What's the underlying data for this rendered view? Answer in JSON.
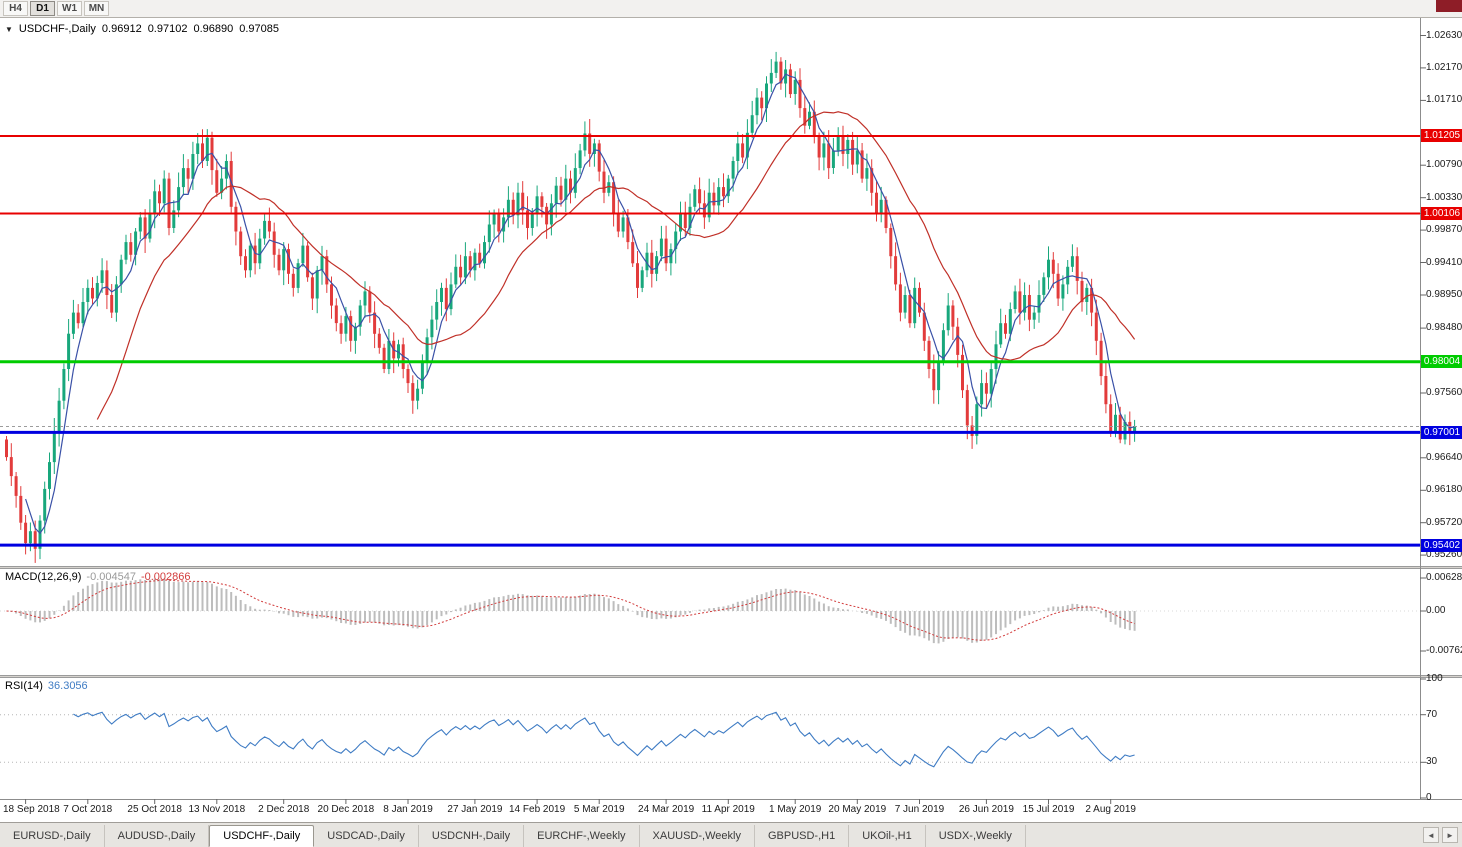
{
  "toolbar": {
    "timeframes": [
      {
        "label": "H4",
        "active": false
      },
      {
        "label": "D1",
        "active": true
      },
      {
        "label": "W1",
        "active": false
      },
      {
        "label": "MN",
        "active": false
      }
    ]
  },
  "chart": {
    "title": {
      "menu_icon": "▼",
      "symbol": "USDCHF-,Daily",
      "open": "0.96912",
      "high": "0.97102",
      "low": "0.96890",
      "close": "0.97085"
    }
  },
  "price_scale": {
    "ticks": [
      "1.02630",
      "1.02170",
      "1.01710",
      "1.00790",
      "1.00330",
      "0.99870",
      "0.99410",
      "0.98950",
      "0.98480",
      "0.97560",
      "0.96640",
      "0.96180",
      "0.95720",
      "0.95260"
    ]
  },
  "macd_panel": {
    "name": "MACD(12,26,9)",
    "value_main": "-0.004547",
    "value_signal": "-0.002866",
    "scale": [
      "0.006286",
      "0.00",
      "-0.00762"
    ]
  },
  "rsi_panel": {
    "name": "RSI(14)",
    "value": "36.3056",
    "scale": [
      "100",
      "70",
      "30",
      "0"
    ]
  },
  "tab_nav": {
    "prev": "◄",
    "next": "►"
  },
  "tabs": [
    {
      "label": "EURUSD-,Daily",
      "active": false
    },
    {
      "label": "AUDUSD-,Daily",
      "active": false
    },
    {
      "label": "USDCHF-,Daily",
      "active": true
    },
    {
      "label": "USDCAD-,Daily",
      "active": false
    },
    {
      "label": "USDCNH-,Daily",
      "active": false
    },
    {
      "label": "EURCHF-,Weekly",
      "active": false
    },
    {
      "label": "XAUUSD-,Weekly",
      "active": false
    },
    {
      "label": "GBPUSD-,H1",
      "active": false
    },
    {
      "label": "UKOil-,H1",
      "active": false
    },
    {
      "label": "USDX-,Weekly",
      "active": false
    }
  ],
  "chart_data": {
    "type": "candlestick",
    "title": "USDCHF-,Daily",
    "ylim": [
      0.9512,
      1.0285
    ],
    "grid": false,
    "x_tick_labels": [
      "18 Sep 2018",
      "7 Oct 2018",
      "25 Oct 2018",
      "13 Nov 2018",
      "2 Dec 2018",
      "20 Dec 2018",
      "8 Jan 2019",
      "27 Jan 2019",
      "14 Feb 2019",
      "5 Mar 2019",
      "24 Mar 2019",
      "11 Apr 2019",
      "1 May 2019",
      "20 May 2019",
      "7 Jun 2019",
      "26 Jun 2019",
      "15 Jul 2019",
      "2 Aug 2019"
    ],
    "x_tick_bar_index": [
      4,
      17,
      31,
      44,
      58,
      71,
      84,
      98,
      111,
      124,
      138,
      151,
      165,
      178,
      191,
      205,
      218,
      231
    ],
    "first_open": 0.969,
    "close": [
      0.9665,
      0.9638,
      0.961,
      0.9572,
      0.9543,
      0.956,
      0.9535,
      0.9575,
      0.962,
      0.9658,
      0.97,
      0.9745,
      0.979,
      0.984,
      0.987,
      0.9855,
      0.9885,
      0.9905,
      0.989,
      0.9912,
      0.993,
      0.9895,
      0.987,
      0.991,
      0.9945,
      0.997,
      0.9952,
      0.9985,
      1.0005,
      0.9975,
      1.001,
      1.0042,
      1.0025,
      1.006,
      0.999,
      1.0015,
      1.0048,
      1.0075,
      1.006,
      1.0095,
      1.011,
      1.0085,
      1.0118,
      1.0072,
      1.004,
      1.006,
      1.0085,
      1.002,
      0.9985,
      0.995,
      0.993,
      0.9965,
      0.994,
      0.9975,
      1.0,
      0.9985,
      0.9952,
      0.993,
      0.996,
      0.9925,
      0.9905,
      0.994,
      0.9965,
      0.992,
      0.989,
      0.993,
      0.995,
      0.991,
      0.988,
      0.9855,
      0.984,
      0.9865,
      0.983,
      0.985,
      0.988,
      0.99,
      0.987,
      0.984,
      0.982,
      0.979,
      0.983,
      0.9805,
      0.9825,
      0.979,
      0.977,
      0.9745,
      0.9762,
      0.98,
      0.9835,
      0.986,
      0.9885,
      0.9905,
      0.9875,
      0.991,
      0.9935,
      0.992,
      0.995,
      0.993,
      0.9955,
      0.994,
      0.997,
      0.9995,
      1.001,
      0.9985,
      1.0005,
      1.003,
      1.0008,
      1.004,
      1.0015,
      0.999,
      1.001,
      1.0035,
      1.002,
      0.9995,
      1.0025,
      1.005,
      1.003,
      1.006,
      1.004,
      1.0075,
      1.01,
      1.0124,
      1.0095,
      1.011,
      1.007,
      1.004,
      1.0055,
      1.001,
      0.9985,
      1.0005,
      0.997,
      0.994,
      0.9905,
      0.993,
      0.9955,
      0.9925,
      0.995,
      0.9975,
      0.994,
      0.996,
      0.9985,
      1.001,
      0.999,
      1.002,
      1.0045,
      1.0025,
      1.0005,
      1.004,
      1.0022,
      1.0048,
      1.0035,
      1.006,
      1.0085,
      1.011,
      1.009,
      1.0125,
      1.015,
      1.0175,
      1.016,
      1.0195,
      1.021,
      1.0226,
      1.0195,
      1.0215,
      1.018,
      1.02,
      1.016,
      1.0135,
      1.0155,
      1.012,
      1.009,
      1.011,
      1.0075,
      1.01,
      1.012,
      1.0095,
      1.0115,
      1.008,
      1.01,
      1.006,
      1.0075,
      1.004,
      1.001,
      1.003,
      0.999,
      0.995,
      0.991,
      0.987,
      0.9895,
      0.9855,
      0.9905,
      0.987,
      0.983,
      0.979,
      0.976,
      0.98,
      0.9845,
      0.988,
      0.985,
      0.981,
      0.976,
      0.971,
      0.9695,
      0.974,
      0.977,
      0.9755,
      0.979,
      0.9825,
      0.9855,
      0.984,
      0.9875,
      0.99,
      0.987,
      0.9895,
      0.986,
      0.987,
      0.9895,
      0.992,
      0.9945,
      0.9925,
      0.989,
      0.991,
      0.9935,
      0.995,
      0.9915,
      0.9885,
      0.9905,
      0.987,
      0.983,
      0.978,
      0.974,
      0.97,
      0.9725,
      0.969,
      0.9715,
      0.9702,
      0.9709
    ],
    "wick_overrides": [
      {
        "bar": 4,
        "low": 0.9527
      },
      {
        "bar": 85,
        "low": 0.9739
      },
      {
        "bar": 161,
        "high": 1.0231
      },
      {
        "bar": 202,
        "low": 0.9693
      },
      {
        "bar": 233,
        "low": 0.9686
      }
    ],
    "current_price": 0.97085,
    "horizontal_lines": [
      {
        "price": 1.01205,
        "label": "1.01205",
        "color": "#e80000",
        "width": 2
      },
      {
        "price": 1.00106,
        "label": "1.00106",
        "color": "#e80000",
        "width": 2
      },
      {
        "price": 0.98004,
        "label": "0.98004",
        "color": "#00cc00",
        "width": 3
      },
      {
        "price": 0.97001,
        "label": "0.97001",
        "color": "#0000e0",
        "width": 3
      },
      {
        "price": 0.95402,
        "label": "0.95402",
        "color": "#0000e0",
        "width": 3
      }
    ],
    "moving_averages": [
      {
        "period": 5,
        "color": "#3a51a7"
      },
      {
        "period": 20,
        "color": "#c03028"
      }
    ],
    "colors": {
      "up": "#18a77c",
      "down": "#e23b3b",
      "macd_hist": "#bdbdbd",
      "macd_signal": "#d23b3b",
      "rsi": "#3f7cc4"
    },
    "indicators": {
      "macd": {
        "params": [
          12,
          26,
          9
        ],
        "display_values": [
          -0.004547,
          -0.002866
        ],
        "ylim": [
          -0.00762,
          0.006286
        ]
      },
      "rsi": {
        "period": 14,
        "display_value": 36.3056,
        "levels": [
          30,
          70
        ],
        "ylim": [
          0,
          100
        ]
      }
    }
  }
}
